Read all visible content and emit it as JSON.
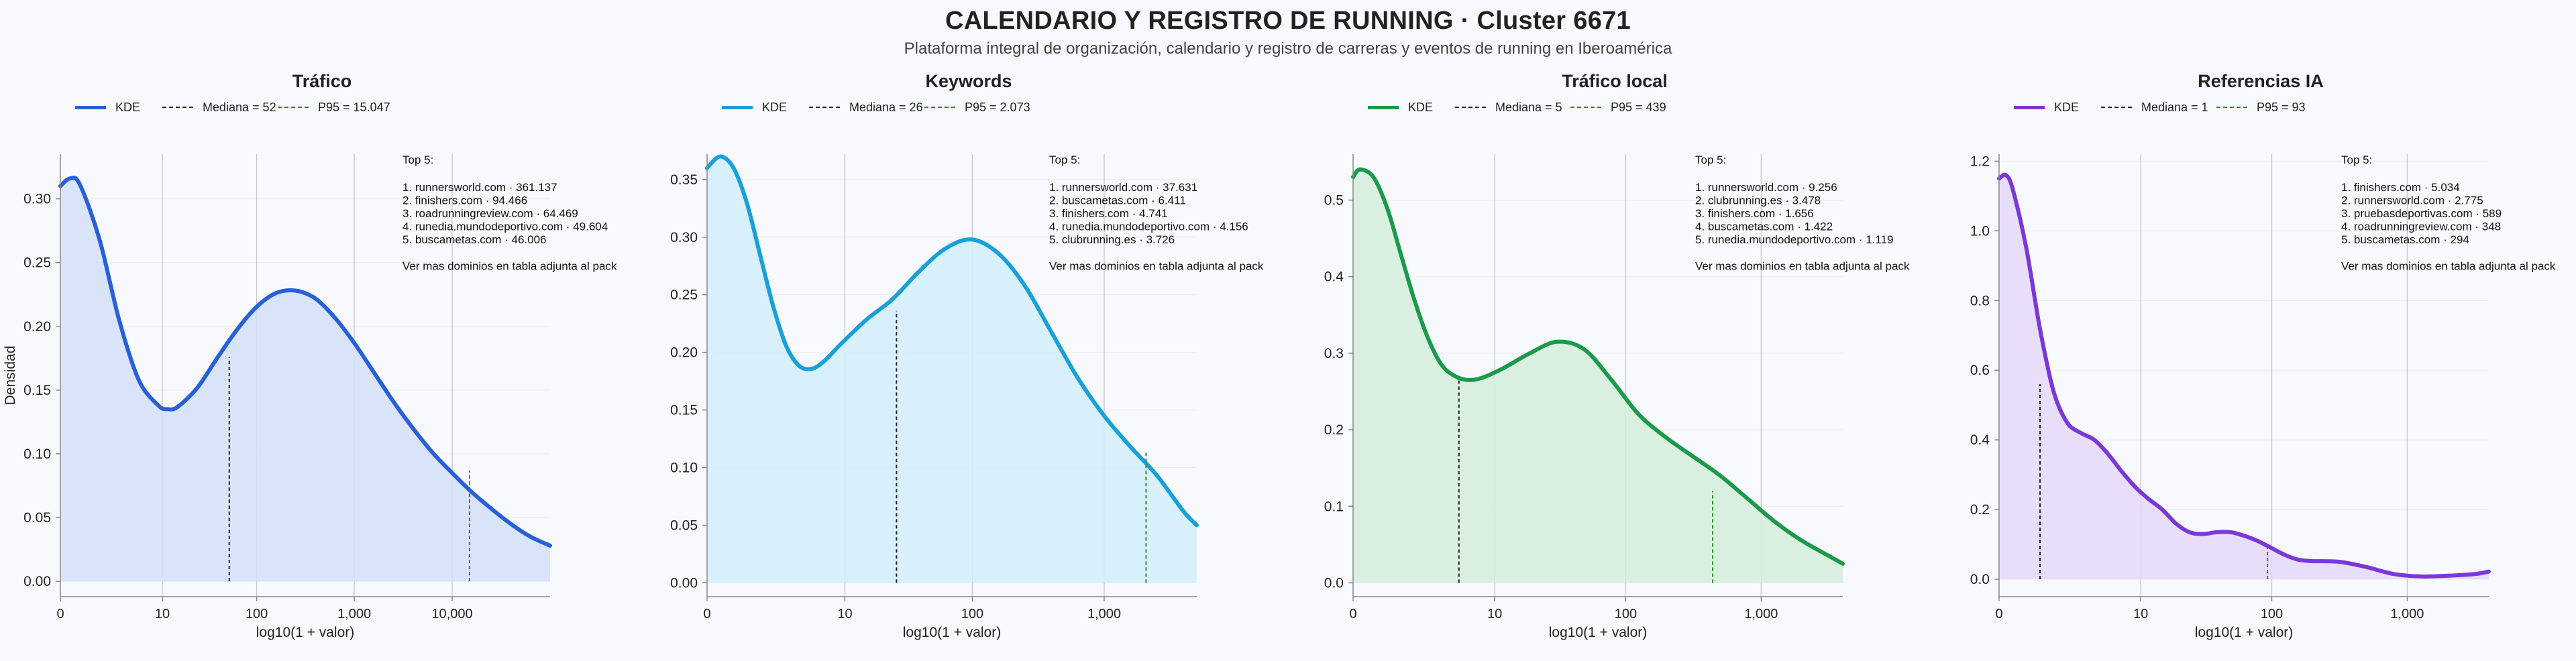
{
  "header": {
    "title": "CALENDARIO Y REGISTRO DE RUNNING · Cluster 6671",
    "subtitle": "Plataforma integral de organización, calendario y registro de carreras y eventos de running en Iberoamérica"
  },
  "legend_labels": {
    "kde": "KDE"
  },
  "colors": {
    "median_line": "#222222",
    "p95_line": "#2a8a2a",
    "axis": "#888888",
    "gridline": "#c9c9c9"
  },
  "chart_data": [
    {
      "type": "area",
      "title": "Tráfico",
      "color": "#2860d8",
      "fill": "#d5e0f8",
      "xlabel": "log10(1 + valor)",
      "ylabel": "Densidad",
      "xlim": [
        0,
        5.0
      ],
      "ylim": [
        -0.012,
        0.335
      ],
      "xticks": [
        {
          "v": 0,
          "label": "0"
        },
        {
          "v": 1.0414,
          "label": "10"
        },
        {
          "v": 2.0043,
          "label": "100"
        },
        {
          "v": 3.0004,
          "label": "1,000"
        },
        {
          "v": 4.0,
          "label": "10,000"
        }
      ],
      "yticks": [
        0,
        0.05,
        0.1,
        0.15,
        0.2,
        0.25,
        0.3
      ],
      "ytick_format": 2,
      "curve": {
        "x": [
          0,
          0.1,
          0.2,
          0.4,
          0.6,
          0.8,
          1.0,
          1.1,
          1.2,
          1.4,
          1.6,
          1.8,
          2.0,
          2.2,
          2.4,
          2.6,
          2.8,
          3.0,
          3.2,
          3.4,
          3.6,
          3.8,
          4.0,
          4.2,
          4.4,
          4.6,
          4.8,
          5.0
        ],
        "y": [
          0.31,
          0.316,
          0.311,
          0.268,
          0.205,
          0.158,
          0.138,
          0.135,
          0.137,
          0.152,
          0.175,
          0.197,
          0.215,
          0.226,
          0.228,
          0.222,
          0.207,
          0.187,
          0.164,
          0.141,
          0.12,
          0.101,
          0.085,
          0.07,
          0.057,
          0.045,
          0.035,
          0.028
        ]
      },
      "median": {
        "label": "Mediana = 52",
        "x": 1.7243,
        "y": 0.176
      },
      "p95": {
        "label": "P95 = 15.047",
        "x": 4.1775,
        "y": 0.087
      },
      "top5": {
        "heading": "Top 5:",
        "items": [
          "1. runnersworld.com · 361.137",
          "2. finishers.com · 94.466",
          "3. roadrunningreview.com · 64.469",
          "4. runedia.mundodeportivo.com · 49.604",
          "5. buscametas.com · 46.006"
        ],
        "footer": "Ver mas dominios en tabla adjunta al pack"
      }
    },
    {
      "type": "area",
      "title": "Keywords",
      "color": "#18a0d8",
      "fill": "#d2eefa",
      "xlabel": "log10(1 + valor)",
      "ylabel": "",
      "xlim": [
        0,
        3.7
      ],
      "ylim": [
        -0.012,
        0.372
      ],
      "xticks": [
        {
          "v": 0,
          "label": "0"
        },
        {
          "v": 1.0414,
          "label": "10"
        },
        {
          "v": 2.0043,
          "label": "100"
        },
        {
          "v": 3.0004,
          "label": "1,000"
        }
      ],
      "yticks": [
        0,
        0.05,
        0.1,
        0.15,
        0.2,
        0.25,
        0.3,
        0.35
      ],
      "ytick_format": 2,
      "curve": {
        "x": [
          0,
          0.1,
          0.2,
          0.3,
          0.4,
          0.5,
          0.6,
          0.7,
          0.8,
          0.9,
          1.0,
          1.2,
          1.4,
          1.6,
          1.8,
          2.0,
          2.2,
          2.4,
          2.6,
          2.8,
          3.0,
          3.2,
          3.4,
          3.6,
          3.7
        ],
        "y": [
          0.36,
          0.37,
          0.36,
          0.33,
          0.285,
          0.24,
          0.205,
          0.188,
          0.186,
          0.194,
          0.206,
          0.228,
          0.246,
          0.27,
          0.29,
          0.298,
          0.286,
          0.258,
          0.218,
          0.178,
          0.145,
          0.118,
          0.093,
          0.062,
          0.05
        ]
      },
      "median": {
        "label": "Mediana = 26",
        "x": 1.4314,
        "y": 0.236
      },
      "p95": {
        "label": "P95 = 2.073",
        "x": 3.3168,
        "y": 0.113
      },
      "top5": {
        "heading": "Top 5:",
        "items": [
          "1. runnersworld.com · 37.631",
          "2. buscametas.com · 6.411",
          "3. finishers.com · 4.741",
          "4. runedia.mundodeportivo.com · 4.156",
          "5. clubrunning.es · 3.726"
        ],
        "footer": "Ver mas dominios en tabla adjunta al pack"
      }
    },
    {
      "type": "area",
      "title": "Tráfico local",
      "color": "#1a9a4a",
      "fill": "#d3eedb",
      "xlabel": "log10(1 + valor)",
      "ylabel": "",
      "xlim": [
        0,
        3.6
      ],
      "ylim": [
        -0.018,
        0.56
      ],
      "xticks": [
        {
          "v": 0,
          "label": "0"
        },
        {
          "v": 1.0414,
          "label": "10"
        },
        {
          "v": 2.0043,
          "label": "100"
        },
        {
          "v": 3.0004,
          "label": "1,000"
        }
      ],
      "yticks": [
        0,
        0.1,
        0.2,
        0.3,
        0.4,
        0.5
      ],
      "ytick_format": 1,
      "curve": {
        "x": [
          0,
          0.05,
          0.15,
          0.25,
          0.35,
          0.45,
          0.55,
          0.65,
          0.75,
          0.85,
          0.95,
          1.1,
          1.3,
          1.5,
          1.7,
          1.9,
          2.1,
          2.3,
          2.5,
          2.7,
          2.9,
          3.1,
          3.3,
          3.5,
          3.6
        ],
        "y": [
          0.53,
          0.54,
          0.53,
          0.49,
          0.43,
          0.37,
          0.32,
          0.285,
          0.27,
          0.265,
          0.268,
          0.28,
          0.3,
          0.315,
          0.305,
          0.265,
          0.22,
          0.19,
          0.165,
          0.14,
          0.11,
          0.08,
          0.055,
          0.035,
          0.025
        ]
      },
      "median": {
        "label": "Mediana = 5",
        "x": 0.7782,
        "y": 0.266
      },
      "p95": {
        "label": "P95 = 439",
        "x": 2.6435,
        "y": 0.12
      },
      "top5": {
        "heading": "Top 5:",
        "items": [
          "1. runnersworld.com · 9.256",
          "2. clubrunning.es · 3.478",
          "3. finishers.com · 1.656",
          "4. buscametas.com · 1.422",
          "5. runedia.mundodeportivo.com · 1.119"
        ],
        "footer": "Ver mas dominios en tabla adjunta al pack"
      }
    },
    {
      "type": "area",
      "title": "Referencias IA",
      "color": "#7a38d8",
      "fill": "#e6d9f8",
      "xlabel": "log10(1 + valor)",
      "ylabel": "",
      "xlim": [
        0,
        3.6
      ],
      "ylim": [
        -0.05,
        1.22
      ],
      "xticks": [
        {
          "v": 0,
          "label": "0"
        },
        {
          "v": 1.0414,
          "label": "10"
        },
        {
          "v": 2.0043,
          "label": "100"
        },
        {
          "v": 3.0004,
          "label": "1,000"
        }
      ],
      "yticks": [
        0,
        0.2,
        0.4,
        0.6,
        0.8,
        1.0,
        1.2
      ],
      "ytick_format": 1,
      "curve": {
        "x": [
          0,
          0.05,
          0.1,
          0.2,
          0.3,
          0.4,
          0.5,
          0.6,
          0.7,
          0.8,
          0.9,
          1.0,
          1.1,
          1.2,
          1.3,
          1.4,
          1.5,
          1.6,
          1.7,
          1.8,
          1.9,
          2.0,
          2.1,
          2.2,
          2.3,
          2.5,
          2.7,
          2.9,
          3.1,
          3.3,
          3.5,
          3.6
        ],
        "y": [
          1.15,
          1.16,
          1.12,
          0.95,
          0.72,
          0.54,
          0.45,
          0.42,
          0.4,
          0.36,
          0.31,
          0.265,
          0.23,
          0.2,
          0.16,
          0.135,
          0.13,
          0.135,
          0.135,
          0.125,
          0.11,
          0.09,
          0.07,
          0.056,
          0.052,
          0.05,
          0.035,
          0.015,
          0.008,
          0.01,
          0.015,
          0.022
        ]
      },
      "median": {
        "label": "Mediana = 1",
        "x": 0.301,
        "y": 0.56
      },
      "p95": {
        "label": "P95 = 93",
        "x": 1.9731,
        "y": 0.09
      },
      "top5": {
        "heading": "Top 5:",
        "items": [
          "1. finishers.com · 5.034",
          "2. runnersworld.com · 2.775",
          "3. pruebasdeportivas.com · 589",
          "4. roadrunningreview.com · 348",
          "5. buscametas.com · 294"
        ],
        "footer": "Ver mas dominios en tabla adjunta al pack"
      }
    }
  ]
}
